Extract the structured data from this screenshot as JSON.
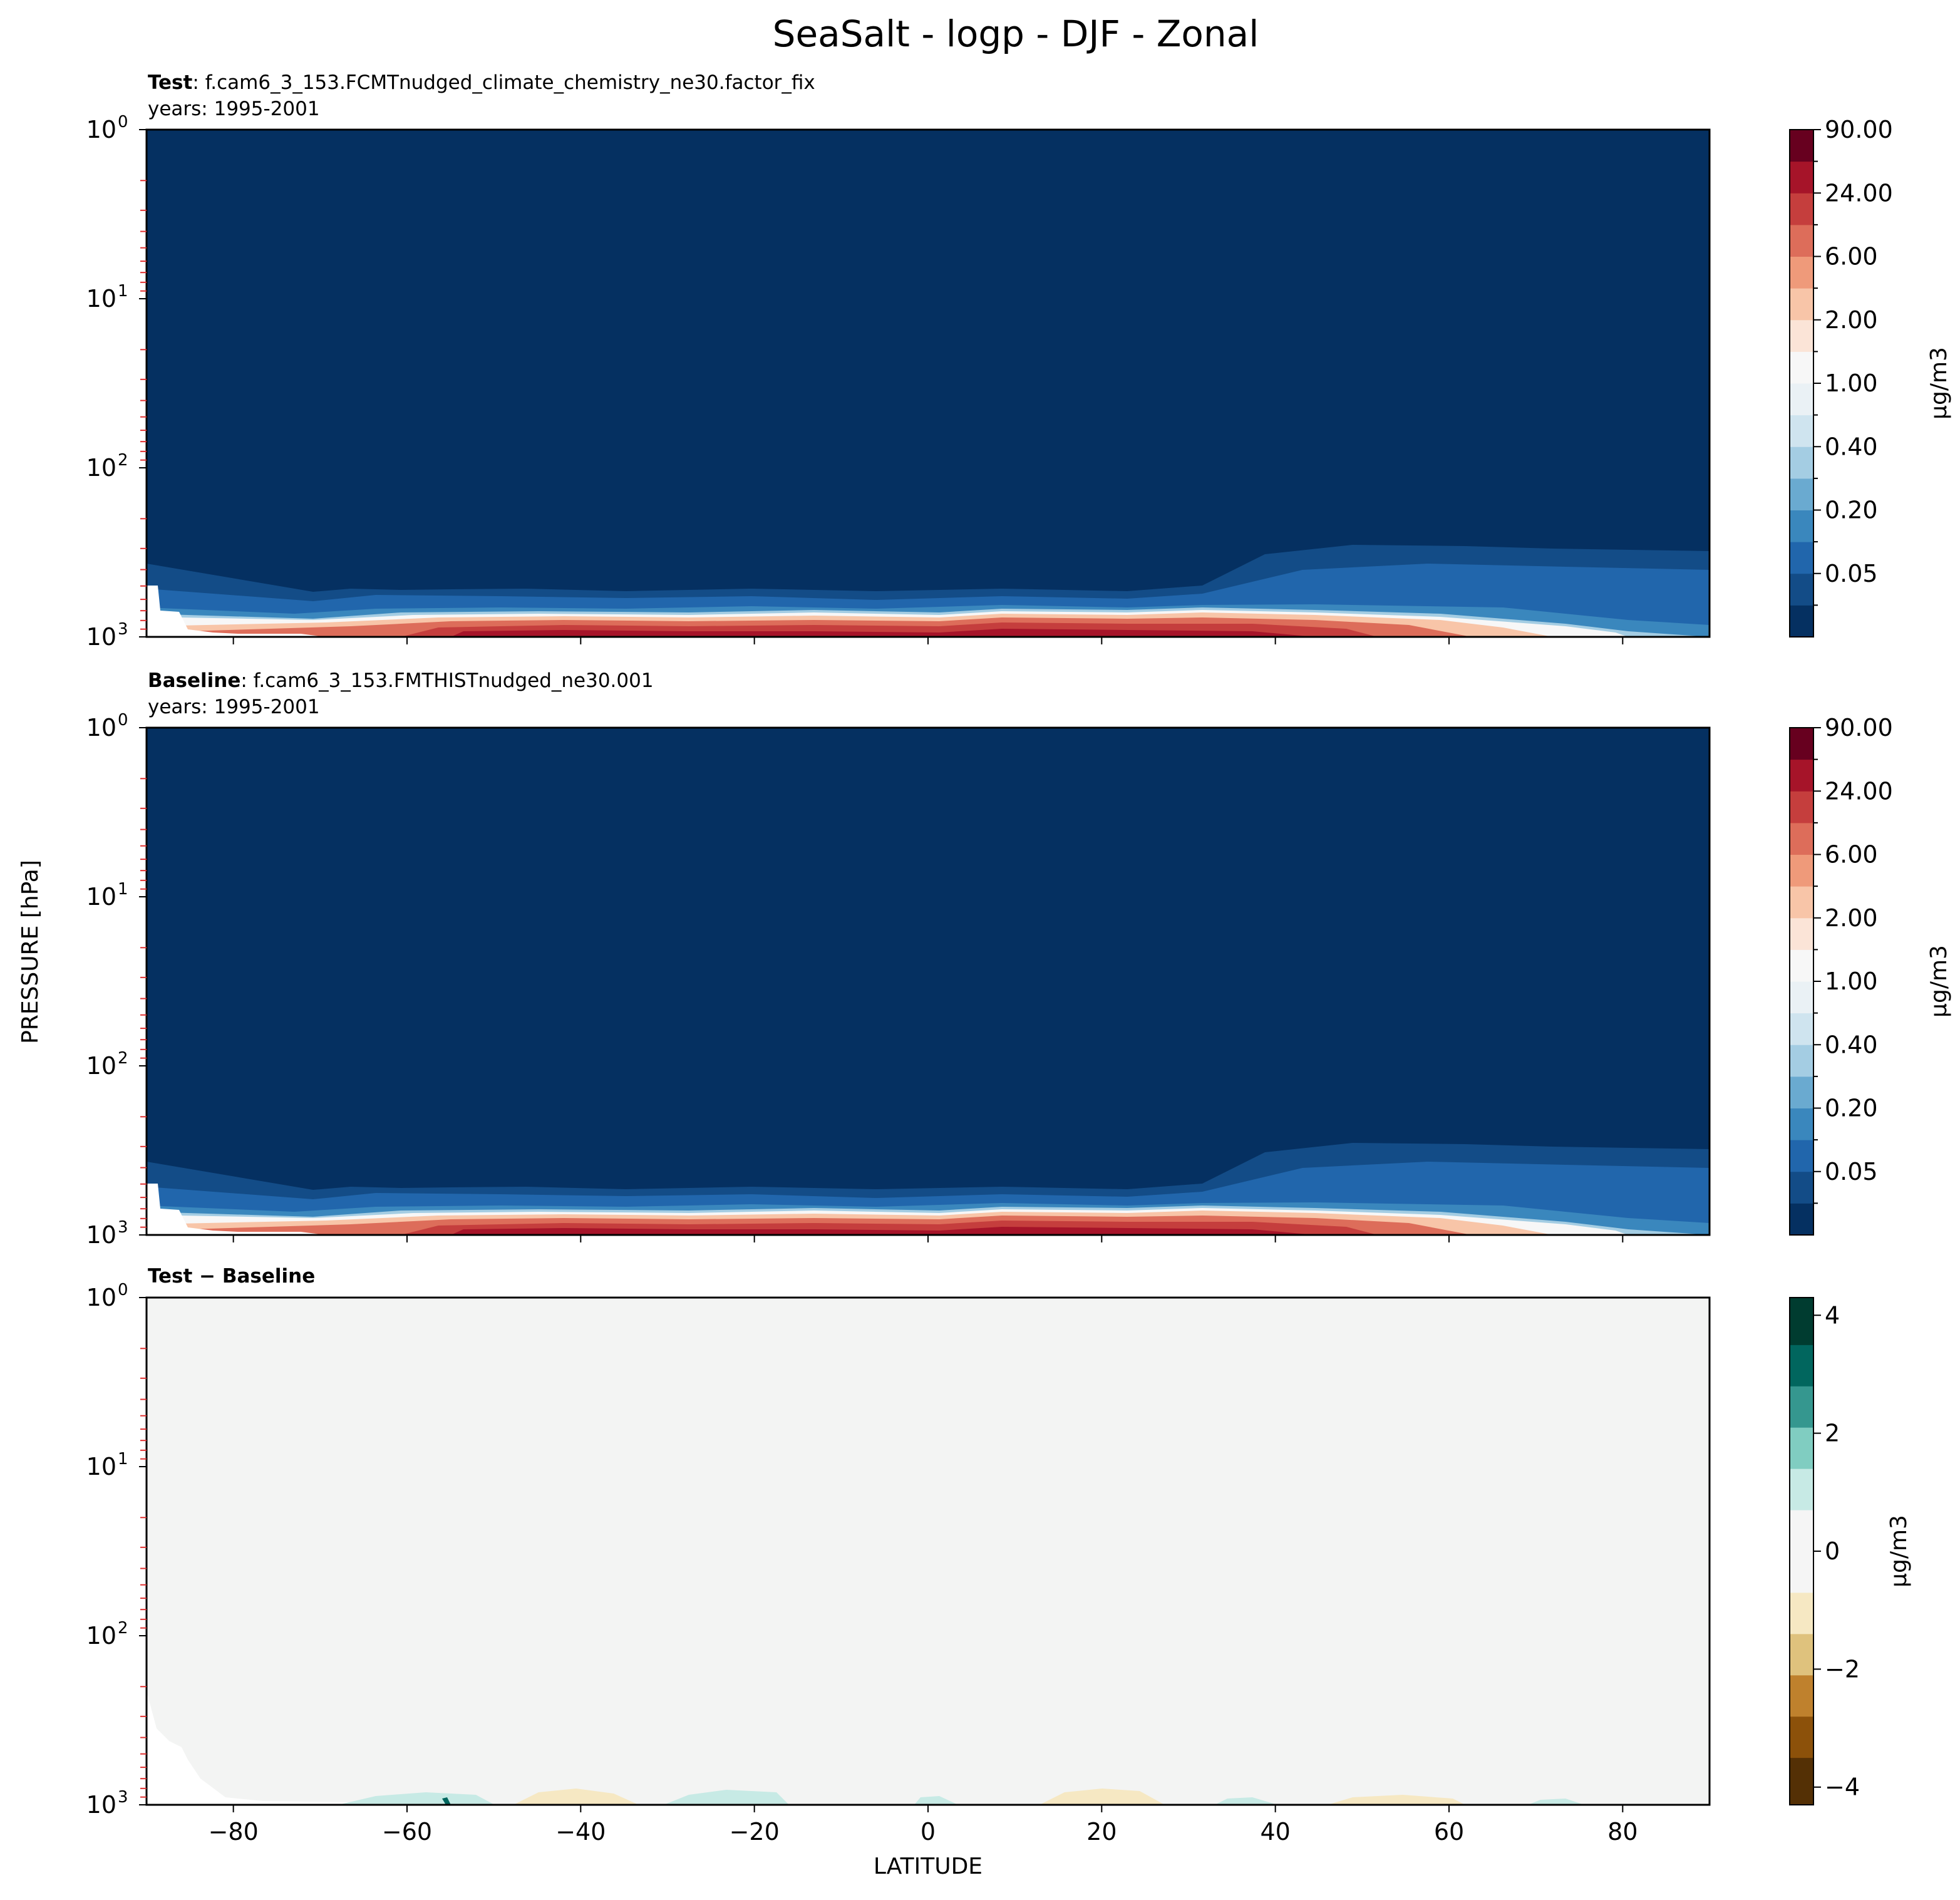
{
  "figure": {
    "title": "SeaSalt - logp - DJF - Zonal",
    "ylabel": "PRESSURE [hPa]",
    "xlabel": "LATITUDE"
  },
  "panels": {
    "test": {
      "label_bold": "Test",
      "label_rest": ": f.cam6_3_153.FCMTnudged_climate_chemistry_ne30.factor_fix",
      "years": "years: 1995-2001",
      "cbar_label": "μg/m3",
      "cbar_ticks": [
        "90.00",
        "24.00",
        "6.00",
        "2.00",
        "1.00",
        "0.40",
        "0.20",
        "0.05"
      ]
    },
    "baseline": {
      "label_bold": "Baseline",
      "label_rest": ": f.cam6_3_153.FMTHISTnudged_ne30.001",
      "years": "years: 1995-2001",
      "cbar_label": "μg/m3",
      "cbar_ticks": [
        "90.00",
        "24.00",
        "6.00",
        "2.00",
        "1.00",
        "0.40",
        "0.20",
        "0.05"
      ]
    },
    "diff": {
      "label_bold": "Test − Baseline",
      "cbar_label": "μg/m3",
      "cbar_ticks": [
        "4",
        "2",
        "0",
        "−2",
        "−4"
      ]
    }
  },
  "colors": {
    "abs_levels": [
      "#053061",
      "#134c87",
      "#2166ac",
      "#3a87bd",
      "#6aaad0",
      "#a4cde3",
      "#cfe4ef",
      "#eaf1f5",
      "#f7f7f7",
      "#fbe4d7",
      "#f8c5a8",
      "#ef9a7a",
      "#dd6d5a",
      "#c53e3d",
      "#a61429",
      "#67001f"
    ],
    "diff_levels": [
      "#543005",
      "#8c510a",
      "#bf812d",
      "#dfc27d",
      "#f6e8c3",
      "#f5f5f5",
      "#c7eae5",
      "#80cdc1",
      "#35978f",
      "#01665e",
      "#003c30"
    ],
    "diff_field": "#f3f4f3"
  },
  "chart_data": [
    {
      "type": "heatmap",
      "title": "Test",
      "subtitle": "f.cam6_3_153.FCMTnudged_climate_chemistry_ne30.factor_fix, years: 1995-2001",
      "xlabel": "LATITUDE",
      "ylabel": "PRESSURE [hPa]",
      "xlim": [
        -90,
        90
      ],
      "ylim": [
        1000,
        1
      ],
      "yscale": "log",
      "x_ticks": [
        -80,
        -60,
        -40,
        -20,
        0,
        20,
        40,
        60,
        80
      ],
      "y_ticks": [
        "10^0",
        "10^1",
        "10^2",
        "10^3"
      ],
      "colorbar_levels": [
        0.05,
        0.2,
        0.4,
        1.0,
        2.0,
        6.0,
        24.0,
        90.0
      ],
      "colorbar_label": "μg/m3",
      "values_note": "Values ~0 above ~500 hPa; highest concentrations (up to ~90 μg/m3) in the boundary layer near 900-1000 hPa between about -55 and 55 latitude"
    },
    {
      "type": "heatmap",
      "title": "Baseline",
      "subtitle": "f.cam6_3_153.FMTHISTnudged_ne30.001, years: 1995-2001",
      "xlabel": "LATITUDE",
      "ylabel": "PRESSURE [hPa]",
      "xlim": [
        -90,
        90
      ],
      "ylim": [
        1000,
        1
      ],
      "yscale": "log",
      "x_ticks": [
        -80,
        -60,
        -40,
        -20,
        0,
        20,
        40,
        60,
        80
      ],
      "y_ticks": [
        "10^0",
        "10^1",
        "10^2",
        "10^3"
      ],
      "colorbar_levels": [
        0.05,
        0.2,
        0.4,
        1.0,
        2.0,
        6.0,
        24.0,
        90.0
      ],
      "colorbar_label": "μg/m3"
    },
    {
      "type": "heatmap",
      "title": "Test − Baseline",
      "xlabel": "LATITUDE",
      "ylabel": "PRESSURE [hPa]",
      "xlim": [
        -90,
        90
      ],
      "ylim": [
        1000,
        1
      ],
      "yscale": "log",
      "x_ticks": [
        -80,
        -60,
        -40,
        -20,
        0,
        20,
        40,
        60,
        80
      ],
      "colorbar_ticks": [
        4,
        2,
        0,
        -2,
        -4
      ],
      "colorbar_range": [
        -4.3,
        4.3
      ],
      "colorbar_label": "μg/m3",
      "values_note": "Near-zero differences everywhere; small positive (green) and negative (tan) patches only near the surface"
    }
  ]
}
